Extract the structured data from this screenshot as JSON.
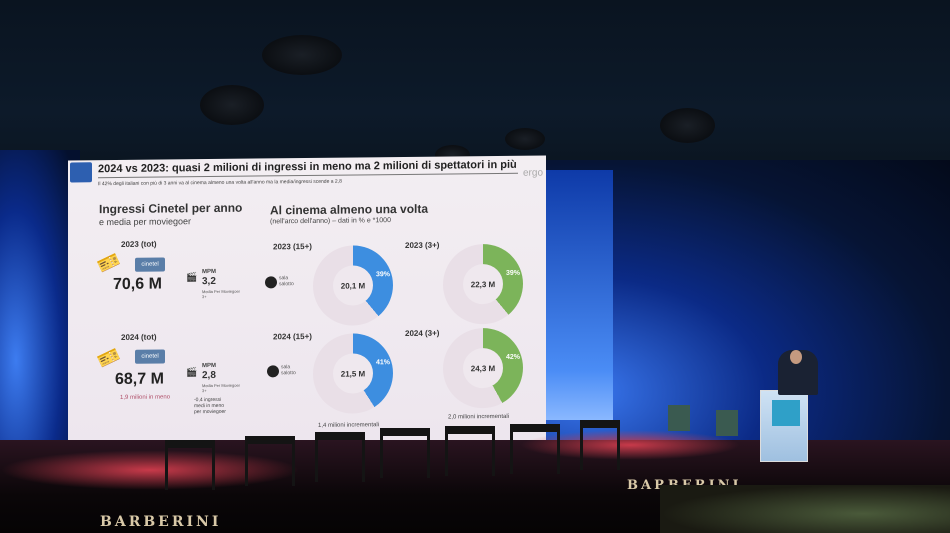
{
  "slide": {
    "title": "2024 vs 2023: quasi 2 milioni di ingressi in meno ma 2 milioni di spettatori in più",
    "subtitle": "Il 42% degli italiani con più di 3 anni va al cinema almeno una volta all'anno ma la media/ingressi scende a 2,8",
    "brand_logo": "ergo",
    "left_heading": "Ingressi Cinetel per anno",
    "left_subheading": "e media per moviegoer",
    "right_heading": "Al cinema almeno una volta",
    "right_subheading": "(nell'arco dell'anno) – dati in % e *1000",
    "cinetel_logo": "cinetel",
    "sala_logo": "sala salotto",
    "mpm_label": "MPM",
    "mpm_caption": "Media Per Moviegoer 3+",
    "rows": [
      {
        "tot_label": "2023 (tot)",
        "ingressi": "70,6 M",
        "mpm": "3,2",
        "donut_15_label": "2023 (15+)",
        "donut_15_value": "20,1 M",
        "donut_15_pct": "39%",
        "donut_15_frac": 0.39,
        "donut_3_label": "2023 (3+)",
        "donut_3_value": "22,3 M",
        "donut_3_pct": "39%",
        "donut_3_frac": 0.39
      },
      {
        "tot_label": "2024 (tot)",
        "ingressi": "68,7 M",
        "mpm": "2,8",
        "delta": "1,9 milioni in meno",
        "mpm_delta": "-0,4 ingressi medi in meno per moviegoer",
        "donut_15_label": "2024 (15+)",
        "donut_15_value": "21,5 M",
        "donut_15_pct": "41%",
        "donut_15_frac": 0.41,
        "donut_3_label": "2024 (3+)",
        "donut_3_value": "24,3 M",
        "donut_3_pct": "42%",
        "donut_3_frac": 0.42,
        "incr_15": "1,4 milioni incrementali",
        "incr_3": "2,0 milioni incrementali"
      }
    ],
    "colors": {
      "blue": "#3d8ee0",
      "green": "#7cb45a",
      "delta": "#b0506a"
    }
  },
  "venue": {
    "stage_brand": "BARBERINI",
    "front_brand": "BARBERINI"
  }
}
